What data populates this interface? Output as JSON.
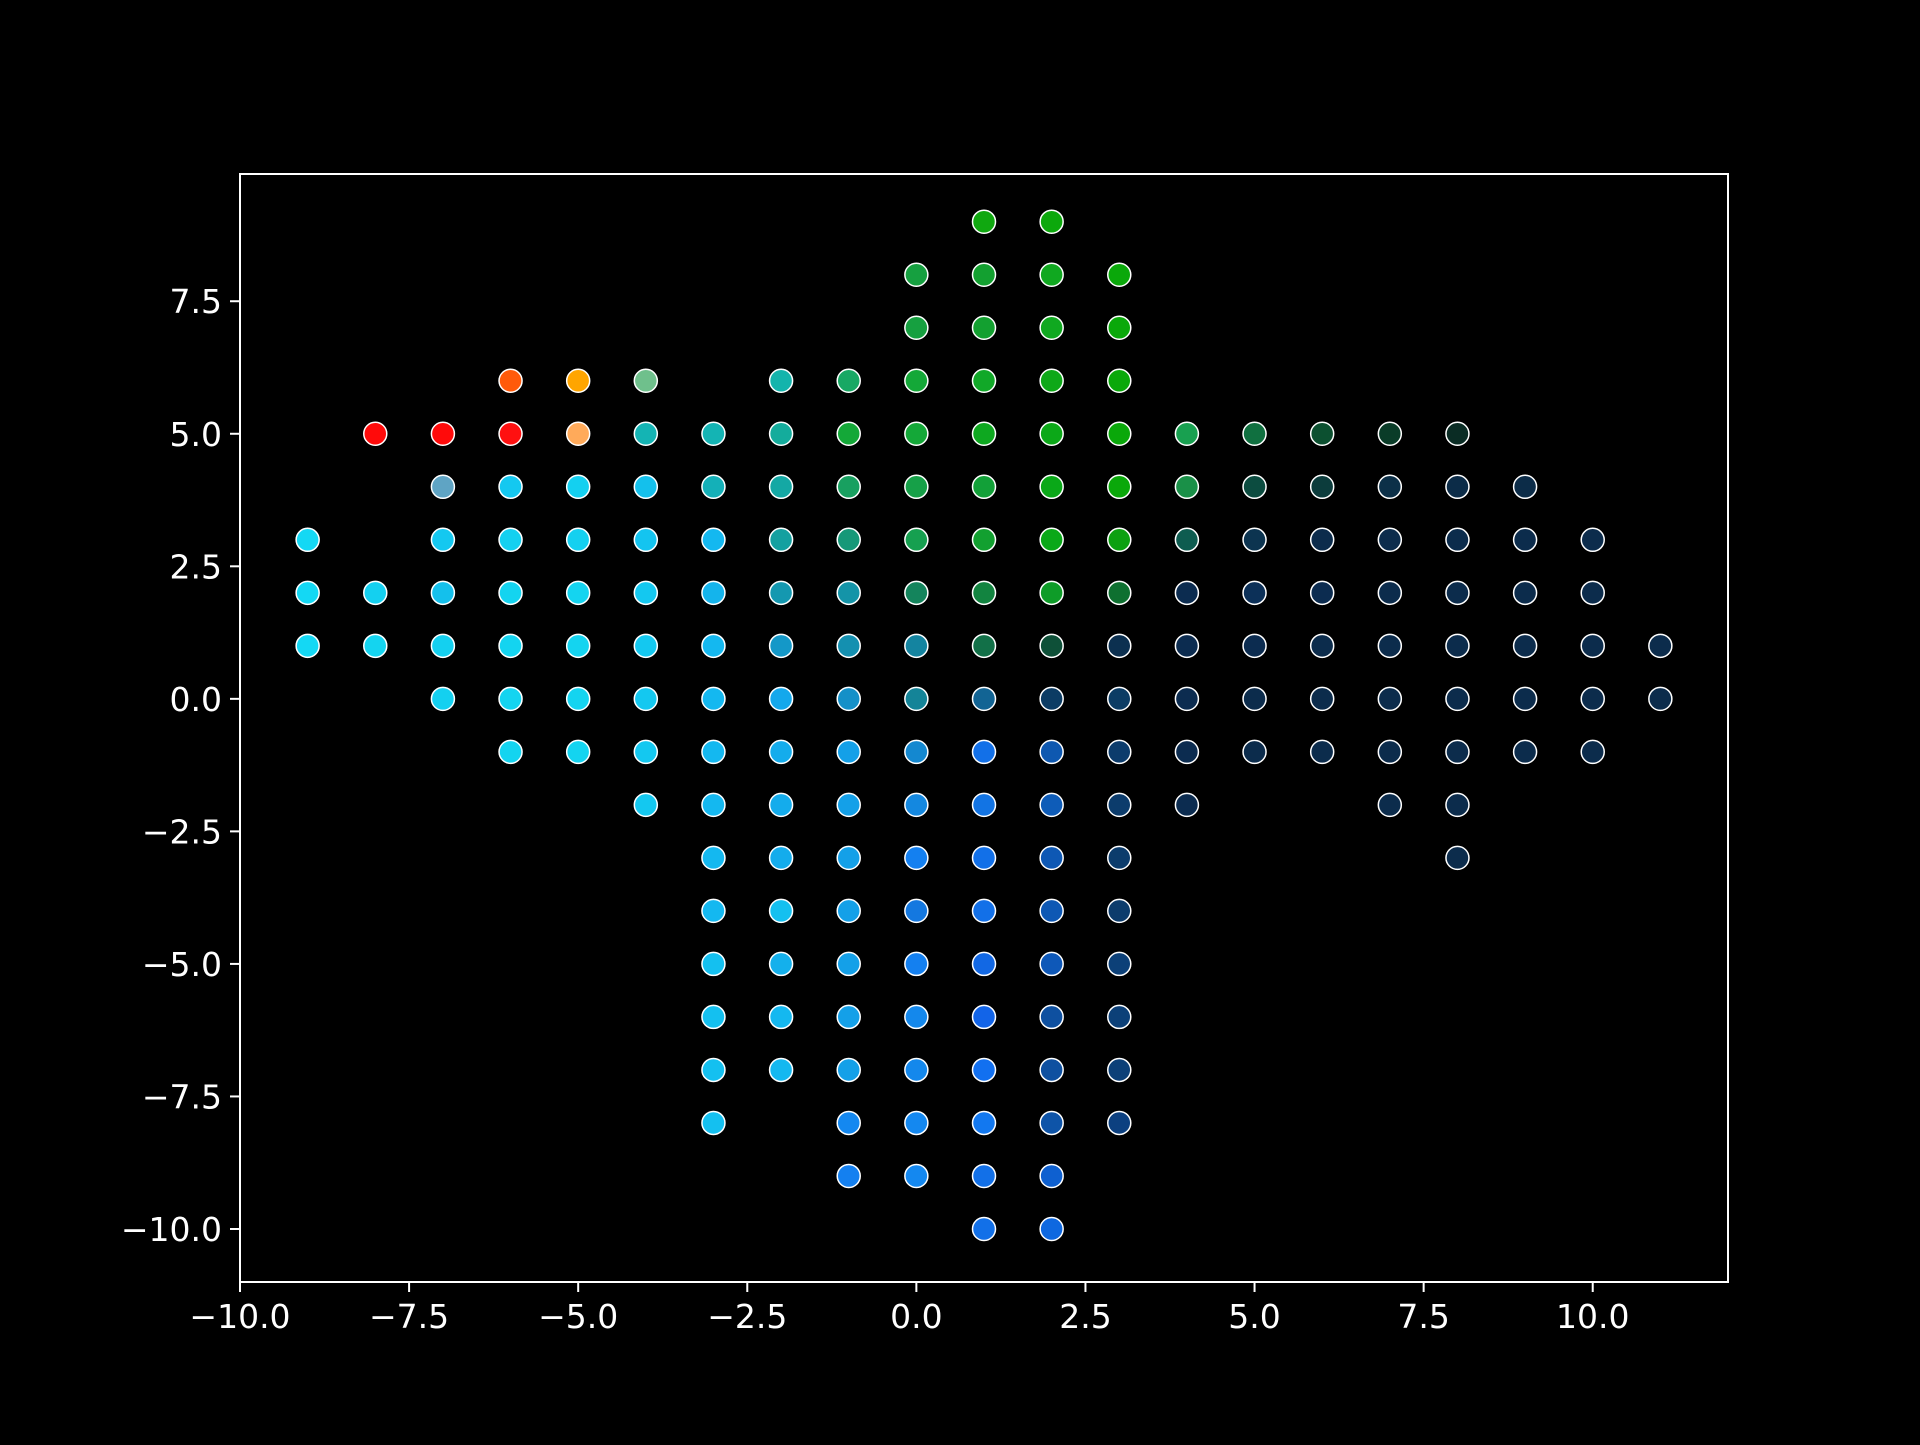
{
  "chart_data": {
    "type": "scatter",
    "title": "",
    "xlabel": "",
    "ylabel": "",
    "xlim": [
      -10.0,
      12.0
    ],
    "ylim": [
      -11.0,
      9.9
    ],
    "grid": false,
    "xticks": [
      -10.0,
      -7.5,
      -5.0,
      -2.5,
      0.0,
      2.5,
      5.0,
      7.5,
      10.0
    ],
    "yticks": [
      -10.0,
      -7.5,
      -5.0,
      -2.5,
      0.0,
      2.5,
      5.0,
      7.5
    ],
    "xtick_labels": [
      "−10.0",
      "−7.5",
      "−5.0",
      "−2.5",
      "0.0",
      "2.5",
      "5.0",
      "7.5",
      "10.0"
    ],
    "ytick_labels": [
      "−10.0",
      "−7.5",
      "−5.0",
      "−2.5",
      "0.0",
      "2.5",
      "5.0",
      "7.5"
    ],
    "colors": {
      "background": "#000000",
      "axes": "#ffffff",
      "marker_edge": "#ffffff"
    },
    "points": [
      {
        "x": 1,
        "y": 9,
        "color": "#10a810"
      },
      {
        "x": 2,
        "y": 9,
        "color": "#0ca80c"
      },
      {
        "x": 0,
        "y": 8,
        "color": "#16a040"
      },
      {
        "x": 1,
        "y": 8,
        "color": "#13a030"
      },
      {
        "x": 2,
        "y": 8,
        "color": "#10a820"
      },
      {
        "x": 3,
        "y": 8,
        "color": "#0aa80a"
      },
      {
        "x": 0,
        "y": 7,
        "color": "#16a040"
      },
      {
        "x": 1,
        "y": 7,
        "color": "#13a030"
      },
      {
        "x": 2,
        "y": 7,
        "color": "#10a820"
      },
      {
        "x": 3,
        "y": 7,
        "color": "#0aa80a"
      },
      {
        "x": -6,
        "y": 6,
        "color": "#ff5a0a"
      },
      {
        "x": -5,
        "y": 6,
        "color": "#ffa500"
      },
      {
        "x": -4,
        "y": 6,
        "color": "#6fc08c"
      },
      {
        "x": -2,
        "y": 6,
        "color": "#14b4ac"
      },
      {
        "x": -1,
        "y": 6,
        "color": "#18a864"
      },
      {
        "x": 0,
        "y": 6,
        "color": "#14a838"
      },
      {
        "x": 1,
        "y": 6,
        "color": "#11a828"
      },
      {
        "x": 2,
        "y": 6,
        "color": "#0ea818"
      },
      {
        "x": 3,
        "y": 6,
        "color": "#0aa80a"
      },
      {
        "x": -8,
        "y": 5,
        "color": "#ff0a0a"
      },
      {
        "x": -7,
        "y": 5,
        "color": "#ff0a0a"
      },
      {
        "x": -6,
        "y": 5,
        "color": "#ff1010"
      },
      {
        "x": -5,
        "y": 5,
        "color": "#ffaa5a"
      },
      {
        "x": -4,
        "y": 5,
        "color": "#14b4b4"
      },
      {
        "x": -3,
        "y": 5,
        "color": "#14b4b4"
      },
      {
        "x": -2,
        "y": 5,
        "color": "#14ac9c"
      },
      {
        "x": -1,
        "y": 5,
        "color": "#14a838"
      },
      {
        "x": 0,
        "y": 5,
        "color": "#14a838"
      },
      {
        "x": 1,
        "y": 5,
        "color": "#0ea820"
      },
      {
        "x": 2,
        "y": 5,
        "color": "#0ca818"
      },
      {
        "x": 3,
        "y": 5,
        "color": "#0aa80a"
      },
      {
        "x": 4,
        "y": 5,
        "color": "#18a050"
      },
      {
        "x": 5,
        "y": 5,
        "color": "#107040"
      },
      {
        "x": 6,
        "y": 5,
        "color": "#0c5030"
      },
      {
        "x": 7,
        "y": 5,
        "color": "#0a3c28"
      },
      {
        "x": 8,
        "y": 5,
        "color": "#0a2c24"
      },
      {
        "x": -7,
        "y": 4,
        "color": "#5fa4c4"
      },
      {
        "x": -6,
        "y": 4,
        "color": "#14c8f0"
      },
      {
        "x": -5,
        "y": 4,
        "color": "#14d0f0"
      },
      {
        "x": -4,
        "y": 4,
        "color": "#14c0ec"
      },
      {
        "x": -3,
        "y": 4,
        "color": "#14b0b8"
      },
      {
        "x": -2,
        "y": 4,
        "color": "#14a8a4"
      },
      {
        "x": -1,
        "y": 4,
        "color": "#18a060"
      },
      {
        "x": 0,
        "y": 4,
        "color": "#16a048"
      },
      {
        "x": 1,
        "y": 4,
        "color": "#12a038"
      },
      {
        "x": 2,
        "y": 4,
        "color": "#0aa818"
      },
      {
        "x": 3,
        "y": 4,
        "color": "#0aa80a"
      },
      {
        "x": 4,
        "y": 4,
        "color": "#1a9048"
      },
      {
        "x": 5,
        "y": 4,
        "color": "#0c4c40"
      },
      {
        "x": 6,
        "y": 4,
        "color": "#0c3c3c"
      },
      {
        "x": 7,
        "y": 4,
        "color": "#0c3048"
      },
      {
        "x": 8,
        "y": 4,
        "color": "#0c2c48"
      },
      {
        "x": 9,
        "y": 4,
        "color": "#0c2c48"
      },
      {
        "x": -9,
        "y": 3,
        "color": "#14d8f4"
      },
      {
        "x": -7,
        "y": 3,
        "color": "#14c8f0"
      },
      {
        "x": -6,
        "y": 3,
        "color": "#14d0f0"
      },
      {
        "x": -5,
        "y": 3,
        "color": "#14d0f0"
      },
      {
        "x": -4,
        "y": 3,
        "color": "#14c4f0"
      },
      {
        "x": -3,
        "y": 3,
        "color": "#14b8f0"
      },
      {
        "x": -2,
        "y": 3,
        "color": "#14a0a0"
      },
      {
        "x": -1,
        "y": 3,
        "color": "#169878"
      },
      {
        "x": 0,
        "y": 3,
        "color": "#16a050"
      },
      {
        "x": 1,
        "y": 3,
        "color": "#12a030"
      },
      {
        "x": 2,
        "y": 3,
        "color": "#0aa818"
      },
      {
        "x": 3,
        "y": 3,
        "color": "#0ca010"
      },
      {
        "x": 4,
        "y": 3,
        "color": "#0e5c50"
      },
      {
        "x": 5,
        "y": 3,
        "color": "#0c3450"
      },
      {
        "x": 6,
        "y": 3,
        "color": "#0c2c4c"
      },
      {
        "x": 7,
        "y": 3,
        "color": "#0c2c4c"
      },
      {
        "x": 8,
        "y": 3,
        "color": "#0c2c4c"
      },
      {
        "x": 9,
        "y": 3,
        "color": "#0c2c4c"
      },
      {
        "x": 10,
        "y": 3,
        "color": "#0c2c4c"
      },
      {
        "x": -9,
        "y": 2,
        "color": "#14d8f4"
      },
      {
        "x": -8,
        "y": 2,
        "color": "#14d0f0"
      },
      {
        "x": -7,
        "y": 2,
        "color": "#14c0ec"
      },
      {
        "x": -6,
        "y": 2,
        "color": "#14d4f0"
      },
      {
        "x": -5,
        "y": 2,
        "color": "#14d4f0"
      },
      {
        "x": -4,
        "y": 2,
        "color": "#14c8f0"
      },
      {
        "x": -3,
        "y": 2,
        "color": "#14b4ec"
      },
      {
        "x": -2,
        "y": 2,
        "color": "#1498b0"
      },
      {
        "x": -1,
        "y": 2,
        "color": "#1494a8"
      },
      {
        "x": 0,
        "y": 2,
        "color": "#14845c"
      },
      {
        "x": 1,
        "y": 2,
        "color": "#128440"
      },
      {
        "x": 2,
        "y": 2,
        "color": "#0e9c28"
      },
      {
        "x": 3,
        "y": 2,
        "color": "#0e7030"
      },
      {
        "x": 4,
        "y": 2,
        "color": "#0c2c50"
      },
      {
        "x": 5,
        "y": 2,
        "color": "#0c3058"
      },
      {
        "x": 6,
        "y": 2,
        "color": "#0c2c50"
      },
      {
        "x": 7,
        "y": 2,
        "color": "#0c2c4c"
      },
      {
        "x": 8,
        "y": 2,
        "color": "#0c2c4c"
      },
      {
        "x": 9,
        "y": 2,
        "color": "#0c2c4c"
      },
      {
        "x": 10,
        "y": 2,
        "color": "#0c2c4c"
      },
      {
        "x": -9,
        "y": 1,
        "color": "#14d8f4"
      },
      {
        "x": -8,
        "y": 1,
        "color": "#14d4f0"
      },
      {
        "x": -7,
        "y": 1,
        "color": "#14d0f0"
      },
      {
        "x": -6,
        "y": 1,
        "color": "#14d4f0"
      },
      {
        "x": -5,
        "y": 1,
        "color": "#14d4f0"
      },
      {
        "x": -4,
        "y": 1,
        "color": "#14c8f0"
      },
      {
        "x": -3,
        "y": 1,
        "color": "#14b8f0"
      },
      {
        "x": -2,
        "y": 1,
        "color": "#1498c8"
      },
      {
        "x": -1,
        "y": 1,
        "color": "#1490b0"
      },
      {
        "x": 0,
        "y": 1,
        "color": "#1484a0"
      },
      {
        "x": 1,
        "y": 1,
        "color": "#127048"
      },
      {
        "x": 2,
        "y": 1,
        "color": "#0e5038"
      },
      {
        "x": 3,
        "y": 1,
        "color": "#0c3050"
      },
      {
        "x": 4,
        "y": 1,
        "color": "#0c2c50"
      },
      {
        "x": 5,
        "y": 1,
        "color": "#0c2c50"
      },
      {
        "x": 6,
        "y": 1,
        "color": "#0c2c4c"
      },
      {
        "x": 7,
        "y": 1,
        "color": "#0c2c4c"
      },
      {
        "x": 8,
        "y": 1,
        "color": "#0c2c4c"
      },
      {
        "x": 9,
        "y": 1,
        "color": "#0c2c4c"
      },
      {
        "x": 10,
        "y": 1,
        "color": "#0c2c4c"
      },
      {
        "x": 11,
        "y": 1,
        "color": "#0c2c4c"
      },
      {
        "x": -7,
        "y": 0,
        "color": "#14d0f0"
      },
      {
        "x": -6,
        "y": 0,
        "color": "#14d4f0"
      },
      {
        "x": -5,
        "y": 0,
        "color": "#14d4f0"
      },
      {
        "x": -4,
        "y": 0,
        "color": "#14c8f0"
      },
      {
        "x": -3,
        "y": 0,
        "color": "#14b8f0"
      },
      {
        "x": -2,
        "y": 0,
        "color": "#14a8ec"
      },
      {
        "x": -1,
        "y": 0,
        "color": "#1490c8"
      },
      {
        "x": 0,
        "y": 0,
        "color": "#148498"
      },
      {
        "x": 1,
        "y": 0,
        "color": "#126494"
      },
      {
        "x": 2,
        "y": 0,
        "color": "#0c3c64"
      },
      {
        "x": 3,
        "y": 0,
        "color": "#0c3c64"
      },
      {
        "x": 4,
        "y": 0,
        "color": "#0c2c50"
      },
      {
        "x": 5,
        "y": 0,
        "color": "#0c2c4c"
      },
      {
        "x": 6,
        "y": 0,
        "color": "#0c2c4c"
      },
      {
        "x": 7,
        "y": 0,
        "color": "#0c2c4c"
      },
      {
        "x": 8,
        "y": 0,
        "color": "#0c2c4c"
      },
      {
        "x": 9,
        "y": 0,
        "color": "#0c2c4c"
      },
      {
        "x": 10,
        "y": 0,
        "color": "#0c2c4c"
      },
      {
        "x": 11,
        "y": 0,
        "color": "#0c2c4c"
      },
      {
        "x": -6,
        "y": -1,
        "color": "#14d4f0"
      },
      {
        "x": -5,
        "y": -1,
        "color": "#14d4f0"
      },
      {
        "x": -4,
        "y": -1,
        "color": "#14c8f0"
      },
      {
        "x": -3,
        "y": -1,
        "color": "#14b8f0"
      },
      {
        "x": -2,
        "y": -1,
        "color": "#14acec"
      },
      {
        "x": -1,
        "y": -1,
        "color": "#14a0e8"
      },
      {
        "x": 0,
        "y": -1,
        "color": "#1488d0"
      },
      {
        "x": 1,
        "y": -1,
        "color": "#1270e8"
      },
      {
        "x": 2,
        "y": -1,
        "color": "#0e58b0"
      },
      {
        "x": 3,
        "y": -1,
        "color": "#0c3c6c"
      },
      {
        "x": 4,
        "y": -1,
        "color": "#0c2c50"
      },
      {
        "x": 5,
        "y": -1,
        "color": "#0c2c4c"
      },
      {
        "x": 6,
        "y": -1,
        "color": "#0c2c4c"
      },
      {
        "x": 7,
        "y": -1,
        "color": "#0c2c4c"
      },
      {
        "x": 8,
        "y": -1,
        "color": "#0c2c4c"
      },
      {
        "x": 9,
        "y": -1,
        "color": "#0c2c4c"
      },
      {
        "x": 10,
        "y": -1,
        "color": "#0c2c4c"
      },
      {
        "x": -4,
        "y": -2,
        "color": "#14c8f0"
      },
      {
        "x": -3,
        "y": -2,
        "color": "#14b8f0"
      },
      {
        "x": -2,
        "y": -2,
        "color": "#14acec"
      },
      {
        "x": -1,
        "y": -2,
        "color": "#14a0e8"
      },
      {
        "x": 0,
        "y": -2,
        "color": "#1488e0"
      },
      {
        "x": 1,
        "y": -2,
        "color": "#1274e4"
      },
      {
        "x": 2,
        "y": -2,
        "color": "#0e5cb8"
      },
      {
        "x": 3,
        "y": -2,
        "color": "#0c3c6c"
      },
      {
        "x": 4,
        "y": -2,
        "color": "#0c2c50"
      },
      {
        "x": 7,
        "y": -2,
        "color": "#0c2c4c"
      },
      {
        "x": 8,
        "y": -2,
        "color": "#0c2c4c"
      },
      {
        "x": -3,
        "y": -3,
        "color": "#14b8f0"
      },
      {
        "x": -2,
        "y": -3,
        "color": "#14acec"
      },
      {
        "x": -1,
        "y": -3,
        "color": "#14a0e8"
      },
      {
        "x": 0,
        "y": -3,
        "color": "#1480f0"
      },
      {
        "x": 1,
        "y": -3,
        "color": "#1270e8"
      },
      {
        "x": 2,
        "y": -3,
        "color": "#0e58b4"
      },
      {
        "x": 3,
        "y": -3,
        "color": "#0c3c6c"
      },
      {
        "x": 8,
        "y": -3,
        "color": "#0c2c4c"
      },
      {
        "x": -3,
        "y": -4,
        "color": "#14b8f0"
      },
      {
        "x": -2,
        "y": -4,
        "color": "#14c0f0"
      },
      {
        "x": -1,
        "y": -4,
        "color": "#14a0e8"
      },
      {
        "x": 0,
        "y": -4,
        "color": "#1478e0"
      },
      {
        "x": 1,
        "y": -4,
        "color": "#1270e8"
      },
      {
        "x": 2,
        "y": -4,
        "color": "#0e58b4"
      },
      {
        "x": 3,
        "y": -4,
        "color": "#0c3c6c"
      },
      {
        "x": -3,
        "y": -5,
        "color": "#14c0f0"
      },
      {
        "x": -2,
        "y": -5,
        "color": "#14b0ec"
      },
      {
        "x": -1,
        "y": -5,
        "color": "#14a0e8"
      },
      {
        "x": 0,
        "y": -5,
        "color": "#1480f0"
      },
      {
        "x": 1,
        "y": -5,
        "color": "#1268e4"
      },
      {
        "x": 2,
        "y": -5,
        "color": "#0e58b8"
      },
      {
        "x": 3,
        "y": -5,
        "color": "#0c4078"
      },
      {
        "x": -3,
        "y": -6,
        "color": "#14c0f0"
      },
      {
        "x": -2,
        "y": -6,
        "color": "#14b8f0"
      },
      {
        "x": -1,
        "y": -6,
        "color": "#14a0e8"
      },
      {
        "x": 0,
        "y": -6,
        "color": "#1488ec"
      },
      {
        "x": 1,
        "y": -6,
        "color": "#1264e8"
      },
      {
        "x": 2,
        "y": -6,
        "color": "#0e50a0"
      },
      {
        "x": 3,
        "y": -6,
        "color": "#0c4078"
      },
      {
        "x": -3,
        "y": -7,
        "color": "#14c0f0"
      },
      {
        "x": -2,
        "y": -7,
        "color": "#14b8f0"
      },
      {
        "x": -1,
        "y": -7,
        "color": "#14a0e8"
      },
      {
        "x": 0,
        "y": -7,
        "color": "#1488ec"
      },
      {
        "x": 1,
        "y": -7,
        "color": "#1270f0"
      },
      {
        "x": 2,
        "y": -7,
        "color": "#0e50a0"
      },
      {
        "x": 3,
        "y": -7,
        "color": "#0c4078"
      },
      {
        "x": -3,
        "y": -8,
        "color": "#14c0f0"
      },
      {
        "x": -1,
        "y": -8,
        "color": "#1488f0"
      },
      {
        "x": 0,
        "y": -8,
        "color": "#1488f0"
      },
      {
        "x": 1,
        "y": -8,
        "color": "#1278f0"
      },
      {
        "x": 2,
        "y": -8,
        "color": "#0e54a8"
      },
      {
        "x": 3,
        "y": -8,
        "color": "#0c4080"
      },
      {
        "x": -1,
        "y": -9,
        "color": "#1480f0"
      },
      {
        "x": 0,
        "y": -9,
        "color": "#1488f0"
      },
      {
        "x": 1,
        "y": -9,
        "color": "#1270e8"
      },
      {
        "x": 2,
        "y": -9,
        "color": "#0e60d0"
      },
      {
        "x": 1,
        "y": -10,
        "color": "#1270e8"
      },
      {
        "x": 2,
        "y": -10,
        "color": "#0e68e0"
      }
    ]
  }
}
